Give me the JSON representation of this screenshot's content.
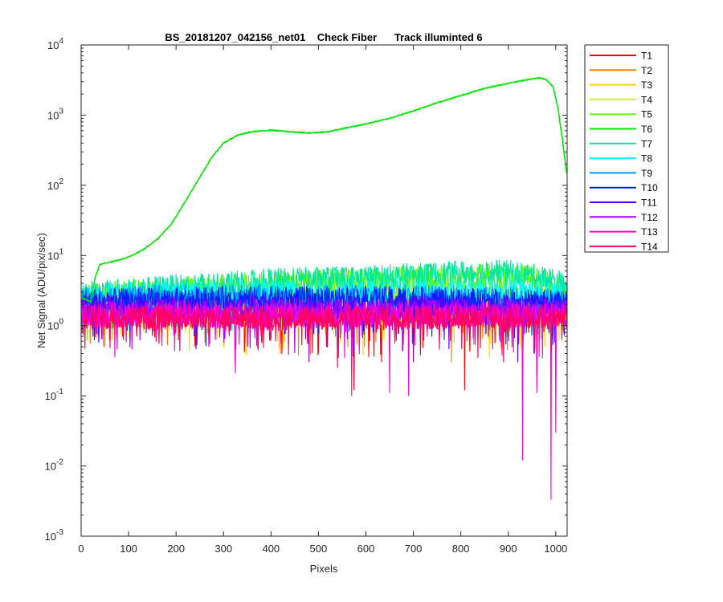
{
  "figure": {
    "background": "#ffffff"
  },
  "chart_data": {
    "type": "line",
    "title": "BS_20181207_042156_net01    Check Fiber      Track illuminted 6",
    "xlabel": "Pixels",
    "ylabel": "Net Signal (ADU/pix/sec)",
    "xlim": [
      0,
      1024
    ],
    "ylim": [
      0.001,
      10000
    ],
    "yscale": "log",
    "grid": false,
    "legend_position": "outside-top-right",
    "xticks": [
      0,
      100,
      200,
      300,
      400,
      500,
      600,
      700,
      800,
      900,
      1000
    ],
    "xtick_labels": [
      "0",
      "100",
      "200",
      "300",
      "400",
      "500",
      "600",
      "700",
      "800",
      "900",
      "1000"
    ],
    "yticks": [
      {
        "value": 0.001,
        "base": "10",
        "exp": "-3"
      },
      {
        "value": 0.01,
        "base": "10",
        "exp": "-2"
      },
      {
        "value": 0.1,
        "base": "10",
        "exp": "-1"
      },
      {
        "value": 1,
        "base": "10",
        "exp": "0"
      },
      {
        "value": 10,
        "base": "10",
        "exp": "1"
      },
      {
        "value": 100,
        "base": "10",
        "exp": "2"
      },
      {
        "value": 1000,
        "base": "10",
        "exp": "3"
      },
      {
        "value": 10000,
        "base": "10",
        "exp": "4"
      }
    ],
    "series": [
      {
        "name": "T1",
        "color": "#ff0000",
        "base": [
          [
            0,
            1.5
          ],
          [
            1024,
            1.4
          ]
        ],
        "dips": [
          [
            575,
            0.12
          ],
          [
            808,
            0.12
          ],
          [
            633,
            0.3
          ]
        ]
      },
      {
        "name": "T2",
        "color": "#ff7f00",
        "base": [
          [
            0,
            1.6
          ],
          [
            1024,
            1.5
          ]
        ],
        "dips": [
          [
            420,
            0.4
          ],
          [
            780,
            0.3
          ]
        ]
      },
      {
        "name": "T3",
        "color": "#ffd700",
        "base": [
          [
            0,
            1.7
          ],
          [
            1024,
            1.6
          ]
        ],
        "dips": [
          [
            300,
            0.5
          ],
          [
            860,
            0.35
          ]
        ]
      },
      {
        "name": "T4",
        "color": "#ccff00",
        "base": [
          [
            0,
            2.0
          ],
          [
            200,
            2.4
          ],
          [
            500,
            2.8
          ],
          [
            800,
            3.2
          ],
          [
            1024,
            2.2
          ]
        ],
        "dips": []
      },
      {
        "name": "T5",
        "color": "#66ff00",
        "base": [
          [
            0,
            2.6
          ],
          [
            200,
            3.3
          ],
          [
            400,
            4.0
          ],
          [
            600,
            4.5
          ],
          [
            850,
            5.2
          ],
          [
            950,
            4.8
          ],
          [
            1024,
            3.0
          ]
        ],
        "dips": []
      },
      {
        "name": "T6",
        "color": "#00e600",
        "smooth": true,
        "base": [
          [
            0,
            2.5
          ],
          [
            20,
            2.2
          ],
          [
            30,
            5.0
          ],
          [
            40,
            7.5
          ],
          [
            60,
            8.0
          ],
          [
            80,
            8.6
          ],
          [
            100,
            9.5
          ],
          [
            130,
            12
          ],
          [
            160,
            17
          ],
          [
            190,
            28
          ],
          [
            220,
            60
          ],
          [
            250,
            130
          ],
          [
            275,
            250
          ],
          [
            300,
            400
          ],
          [
            330,
            520
          ],
          [
            360,
            580
          ],
          [
            400,
            610
          ],
          [
            440,
            580
          ],
          [
            480,
            555
          ],
          [
            520,
            580
          ],
          [
            560,
            660
          ],
          [
            600,
            750
          ],
          [
            650,
            900
          ],
          [
            700,
            1150
          ],
          [
            750,
            1500
          ],
          [
            800,
            1900
          ],
          [
            850,
            2400
          ],
          [
            900,
            2850
          ],
          [
            940,
            3200
          ],
          [
            965,
            3400
          ],
          [
            980,
            3200
          ],
          [
            995,
            2500
          ],
          [
            1005,
            1200
          ],
          [
            1015,
            400
          ],
          [
            1024,
            130
          ]
        ],
        "dips": []
      },
      {
        "name": "T7",
        "color": "#00e6a0",
        "base": [
          [
            0,
            2.8
          ],
          [
            200,
            3.6
          ],
          [
            400,
            4.4
          ],
          [
            600,
            4.8
          ],
          [
            800,
            5.6
          ],
          [
            900,
            5.8
          ],
          [
            1000,
            4.5
          ],
          [
            1024,
            3.2
          ]
        ],
        "dips": []
      },
      {
        "name": "T8",
        "color": "#00ffff",
        "base": [
          [
            0,
            2.6
          ],
          [
            300,
            3.0
          ],
          [
            600,
            3.0
          ],
          [
            900,
            3.2
          ],
          [
            1024,
            2.6
          ]
        ],
        "dips": []
      },
      {
        "name": "T9",
        "color": "#0099ff",
        "base": [
          [
            0,
            2.4
          ],
          [
            300,
            2.6
          ],
          [
            700,
            2.6
          ],
          [
            1024,
            2.3
          ]
        ],
        "dips": []
      },
      {
        "name": "T10",
        "color": "#0022ff",
        "base": [
          [
            0,
            2.2
          ],
          [
            300,
            2.4
          ],
          [
            700,
            2.4
          ],
          [
            1024,
            2.1
          ]
        ],
        "dips": []
      },
      {
        "name": "T11",
        "color": "#5500ff",
        "base": [
          [
            0,
            1.8
          ],
          [
            1024,
            1.8
          ]
        ],
        "dips": [
          [
            700,
            0.3
          ],
          [
            920,
            0.3
          ]
        ]
      },
      {
        "name": "T12",
        "color": "#aa00ff",
        "base": [
          [
            0,
            1.6
          ],
          [
            1024,
            1.6
          ]
        ],
        "dips": [
          [
            480,
            0.3
          ],
          [
            990,
            0.25
          ]
        ]
      },
      {
        "name": "T13",
        "color": "#ff00dd",
        "base": [
          [
            0,
            1.4
          ],
          [
            1024,
            1.4
          ]
        ],
        "dips": [
          [
            325,
            0.21
          ],
          [
            570,
            0.1
          ],
          [
            650,
            0.11
          ],
          [
            690,
            0.1
          ],
          [
            930,
            0.012
          ],
          [
            990,
            0.0033
          ],
          [
            960,
            0.11
          ],
          [
            1000,
            0.03
          ]
        ]
      },
      {
        "name": "T14",
        "color": "#ff0066",
        "base": [
          [
            0,
            1.3
          ],
          [
            1024,
            1.3
          ]
        ],
        "dips": [
          [
            540,
            0.25
          ],
          [
            890,
            0.3
          ]
        ]
      }
    ]
  }
}
